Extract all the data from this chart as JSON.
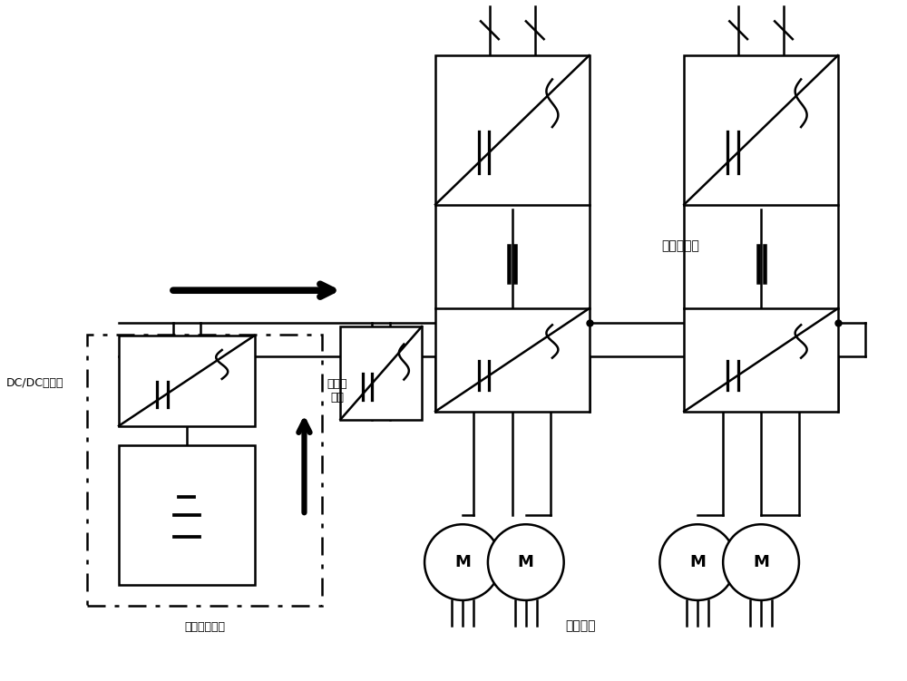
{
  "bg_color": "#ffffff",
  "line_color": "#000000",
  "lw": 1.8,
  "fig_width": 10.0,
  "fig_height": 7.51,
  "labels": {
    "dc_dc": "DC/DC转换器",
    "fuel_cell": "燃料电池系统",
    "aux_converter": "辅助变\n流器",
    "traction_converter": "牵引变流器",
    "traction_motor": "牵引电机"
  },
  "layout": {
    "xlim": [
      0,
      10
    ],
    "ylim": [
      0,
      7.51
    ]
  }
}
